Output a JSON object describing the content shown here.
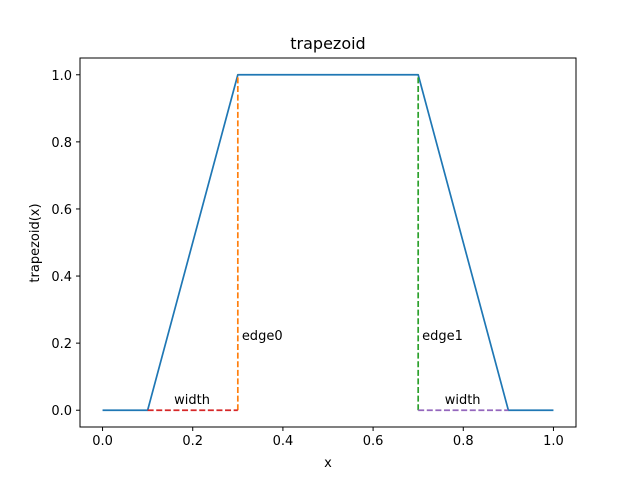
{
  "chart_data": {
    "type": "line",
    "title": "trapezoid",
    "xlabel": "x",
    "ylabel": "trapezoid(x)",
    "xlim": [
      -0.05,
      1.05
    ],
    "ylim": [
      -0.05,
      1.05
    ],
    "xticks": [
      0.0,
      0.2,
      0.4,
      0.6,
      0.8,
      1.0
    ],
    "yticks": [
      0.0,
      0.2,
      0.4,
      0.6,
      0.8,
      1.0
    ],
    "xtick_labels": [
      "0.0",
      "0.2",
      "0.4",
      "0.6",
      "0.8",
      "1.0"
    ],
    "ytick_labels": [
      "0.0",
      "0.2",
      "0.4",
      "0.6",
      "0.8",
      "1.0"
    ],
    "grid": false,
    "series": [
      {
        "color": "#1f77b4",
        "style": "solid",
        "x": [
          0.0,
          0.1,
          0.3,
          0.7,
          0.9,
          1.0
        ],
        "y": [
          0.0,
          0.0,
          1.0,
          1.0,
          0.0,
          0.0
        ]
      },
      {
        "color": "#ff7f0e",
        "style": "dashed",
        "x": [
          0.3,
          0.3
        ],
        "y": [
          0.0,
          1.0
        ]
      },
      {
        "color": "#2ca02c",
        "style": "dashed",
        "x": [
          0.7,
          0.7
        ],
        "y": [
          0.0,
          1.0
        ]
      },
      {
        "color": "#d62728",
        "style": "dashed",
        "x": [
          0.1,
          0.3
        ],
        "y": [
          0.0,
          0.0
        ]
      },
      {
        "color": "#9467bd",
        "style": "dashed",
        "x": [
          0.7,
          0.9
        ],
        "y": [
          0.0,
          0.0
        ]
      }
    ],
    "annotations": [
      {
        "text": "edge0",
        "x": 0.3,
        "y": 0.2
      },
      {
        "text": "edge1",
        "x": 0.7,
        "y": 0.2
      },
      {
        "text": "width",
        "x": 0.15,
        "y": 0.01
      },
      {
        "text": "width",
        "x": 0.75,
        "y": 0.01
      }
    ]
  }
}
